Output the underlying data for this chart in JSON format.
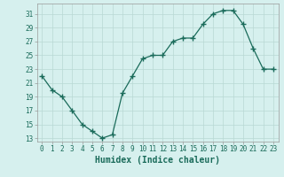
{
  "x": [
    0,
    1,
    2,
    3,
    4,
    5,
    6,
    7,
    8,
    9,
    10,
    11,
    12,
    13,
    14,
    15,
    16,
    17,
    18,
    19,
    20,
    21,
    22,
    23
  ],
  "y": [
    22,
    20,
    19,
    17,
    15,
    14,
    13,
    13.5,
    19.5,
    22,
    24.5,
    25,
    25,
    27,
    27.5,
    27.5,
    29.5,
    31,
    31.5,
    31.5,
    29.5,
    26,
    23,
    23
  ],
  "line_color": "#1a6b5a",
  "marker": "+",
  "marker_size": 4,
  "bg_color": "#d6f0ee",
  "grid_color": "#b8d8d4",
  "xlabel": "Humidex (Indice chaleur)",
  "xlim": [
    -0.5,
    23.5
  ],
  "ylim": [
    12.5,
    32.5
  ],
  "yticks": [
    13,
    15,
    17,
    19,
    21,
    23,
    25,
    27,
    29,
    31
  ],
  "xticks": [
    0,
    1,
    2,
    3,
    4,
    5,
    6,
    7,
    8,
    9,
    10,
    11,
    12,
    13,
    14,
    15,
    16,
    17,
    18,
    19,
    20,
    21,
    22,
    23
  ],
  "tick_label_fontsize": 5.5,
  "xlabel_fontsize": 7.0
}
